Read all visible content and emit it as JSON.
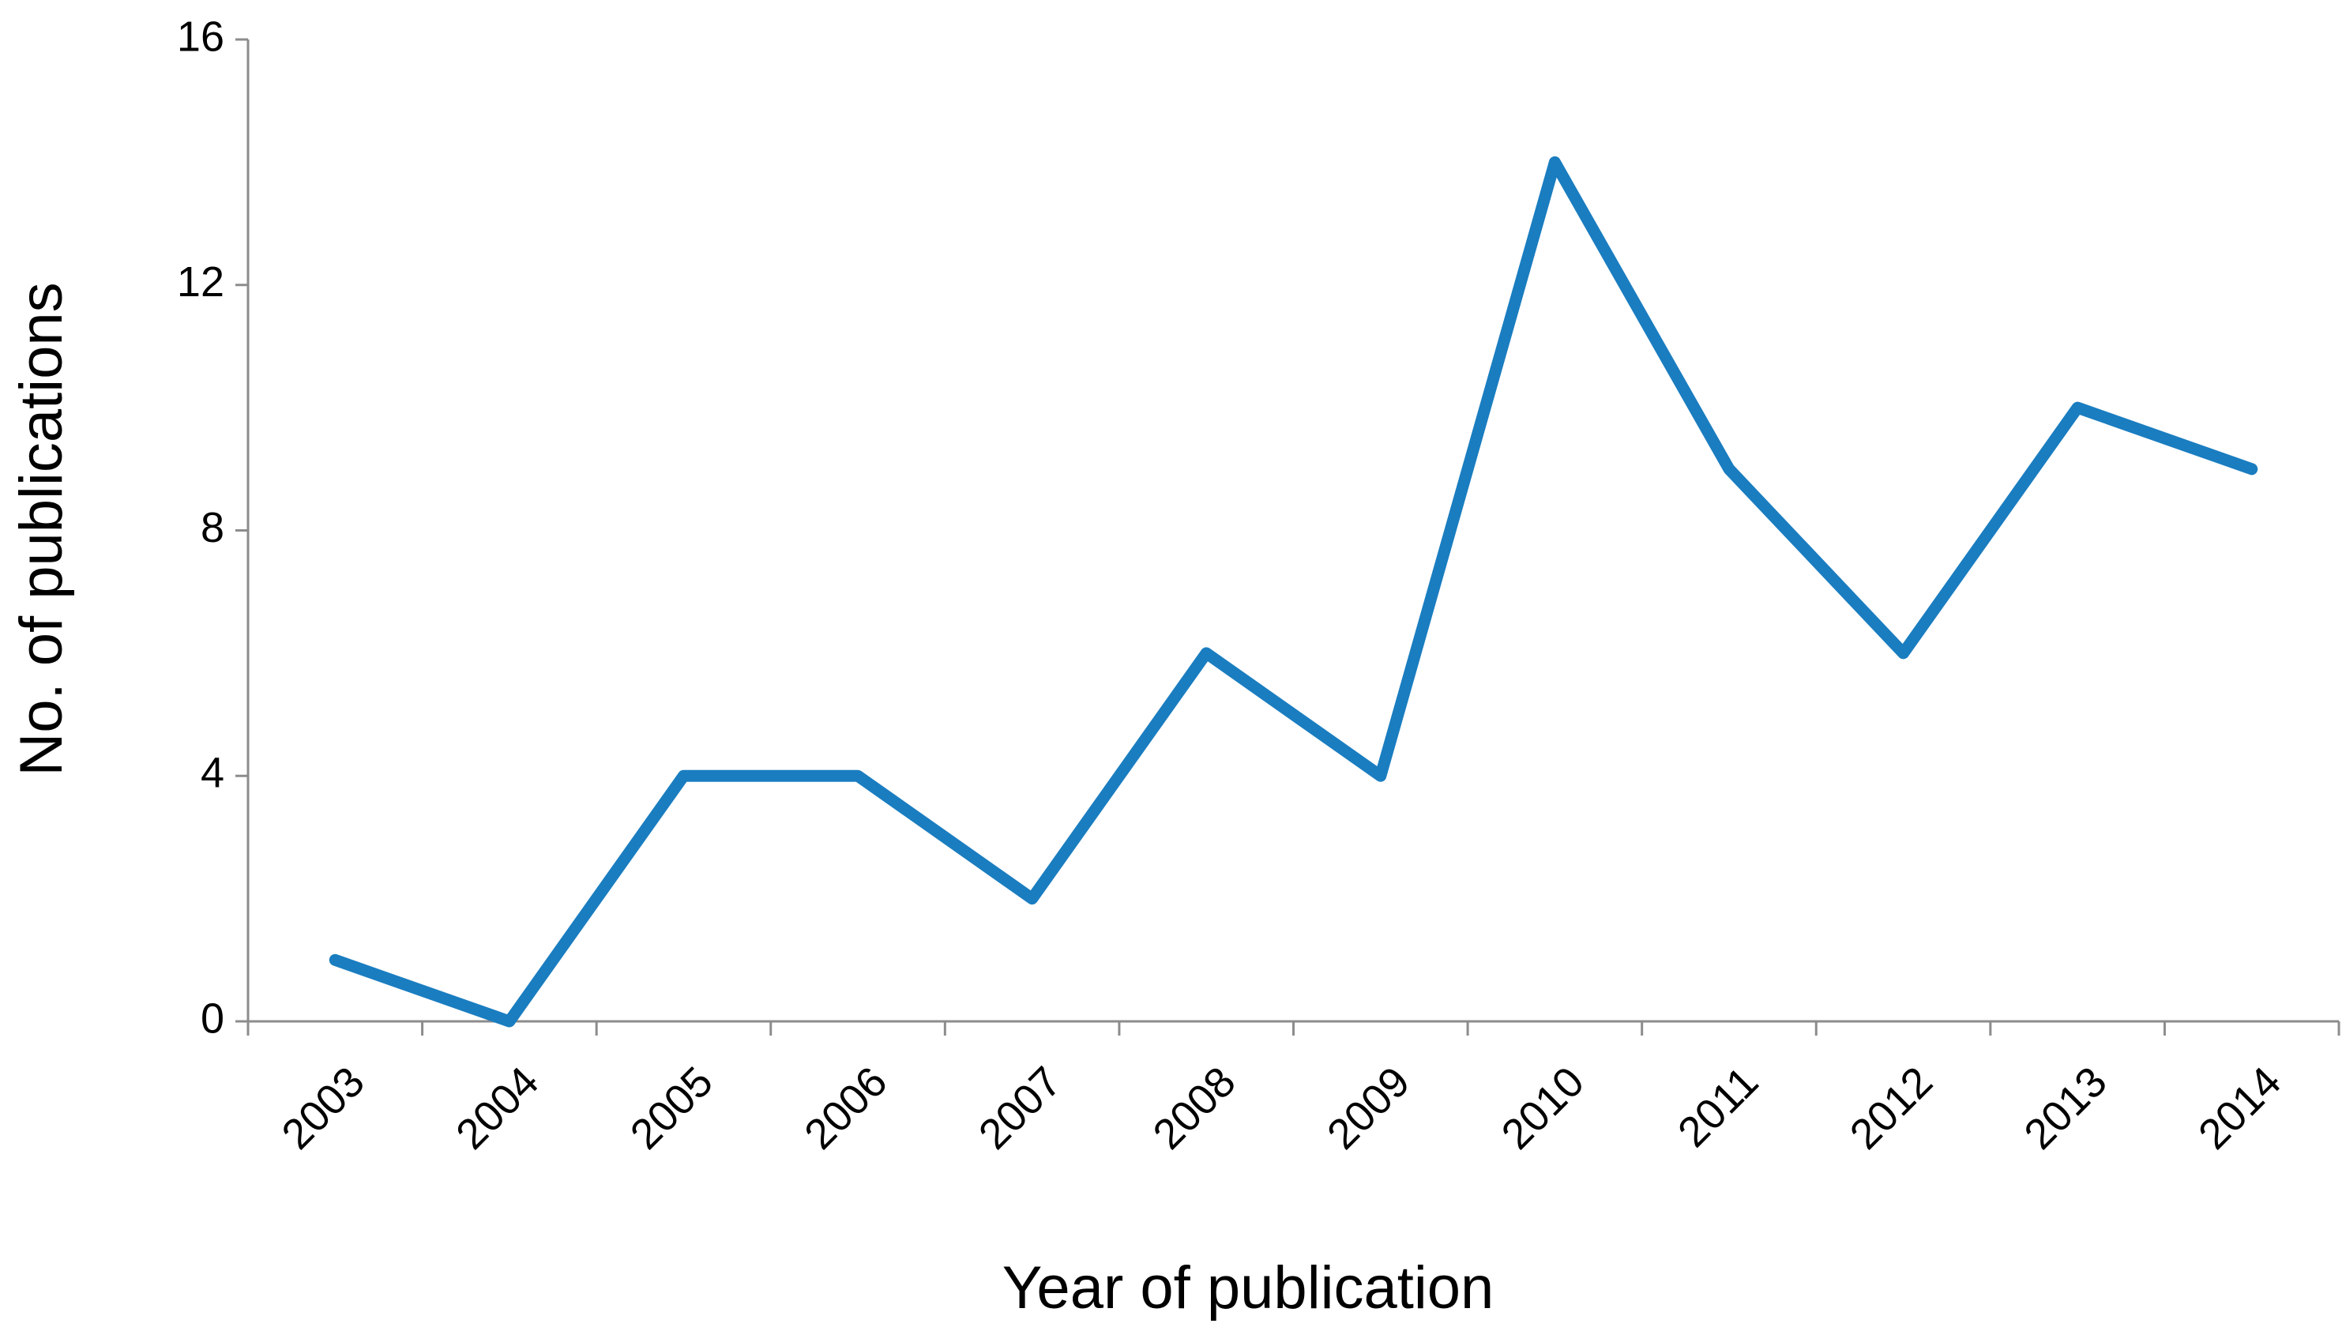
{
  "chart_data": {
    "type": "line",
    "x_label": "Year of publication",
    "y_label": "No. of publications",
    "categories": [
      "2003",
      "2004",
      "2005",
      "2006",
      "2007",
      "2008",
      "2009",
      "2010",
      "2011",
      "2012",
      "2013",
      "2014"
    ],
    "values": [
      1,
      0,
      4,
      4,
      2,
      6,
      4,
      14,
      9,
      6,
      10,
      9
    ],
    "color": "#1a7dc0",
    "ylim": [
      0,
      16
    ],
    "yticks": [
      0,
      4,
      8,
      12,
      16
    ],
    "grid": false
  }
}
